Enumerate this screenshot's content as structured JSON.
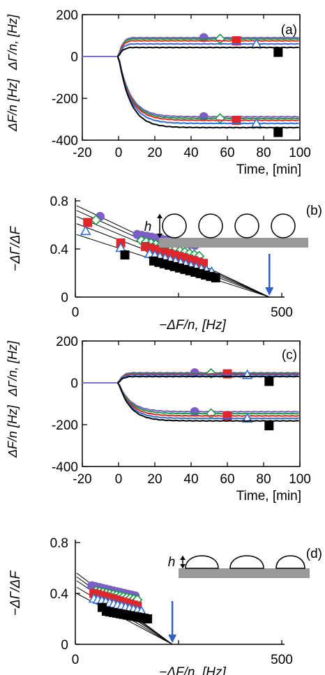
{
  "colors": {
    "purple": "#7b5ec8",
    "green": "#1a9a44",
    "red": "#e0262b",
    "blue": "#2f6fd0",
    "black": "#000000",
    "arrow": "#2f5fc4",
    "substrate": "#999999"
  },
  "chart_data": [
    {
      "panel": "(a)",
      "type": "line",
      "xlabel": "Time, [min]",
      "ylabel_top": "ΔΓ/n, [Hz]",
      "ylabel_bottom": "ΔF/n [Hz]",
      "xlim": [
        -20,
        100
      ],
      "ylim": [
        -400,
        200
      ],
      "xticks": [
        "-20",
        "0",
        "20",
        "40",
        "60",
        "80",
        "100"
      ],
      "yticks": [
        "200",
        "0",
        "-200",
        "-400"
      ],
      "series": [
        {
          "marker": "circle",
          "color": "purple",
          "dG_plateau": 90,
          "dF_plateau": -288,
          "marker_x": 47
        },
        {
          "marker": "diamond",
          "color": "green",
          "dG_plateau": 84,
          "dF_plateau": -296,
          "marker_x": 56
        },
        {
          "marker": "square",
          "color": "red",
          "dG_plateau": 75,
          "dF_plateau": -305,
          "marker_x": 65
        },
        {
          "marker": "triangle",
          "color": "blue",
          "dG_plateau": 60,
          "dF_plateau": -320,
          "marker_x": 76
        },
        {
          "marker": "square",
          "color": "black",
          "dG_plateau": 43,
          "dF_plateau": -340,
          "marker_x": 88
        }
      ]
    },
    {
      "panel": "(b)",
      "type": "scatter",
      "xlabel": "−ΔF/n, [Hz]",
      "ylabel": "−ΔΓ/ΔF",
      "xlim": [
        0,
        500
      ],
      "ylim": [
        0,
        0.8
      ],
      "xticks": [
        "0",
        "500"
      ],
      "yticks": [
        "0.8",
        "0.4",
        "0"
      ],
      "intercept_x": 470,
      "inset_label": "h",
      "inset_shape": "circle",
      "lines_y0": [
        0.76,
        0.72,
        0.67,
        0.61,
        0.52
      ],
      "series": [
        {
          "marker": "circle",
          "color": "purple",
          "x_range": [
            150,
            290
          ],
          "y_range": [
            0.52,
            0.43
          ],
          "isolated": [
            [
              60,
              0.67
            ]
          ]
        },
        {
          "marker": "diamond",
          "color": "green",
          "x_range": [
            160,
            300
          ],
          "y_range": [
            0.47,
            0.34
          ],
          "isolated": [
            [
              50,
              0.64
            ]
          ]
        },
        {
          "marker": "square",
          "color": "red",
          "x_range": [
            170,
            310
          ],
          "y_range": [
            0.42,
            0.28
          ],
          "isolated": [
            [
              30,
              0.62
            ],
            [
              110,
              0.45
            ]
          ]
        },
        {
          "marker": "triangle",
          "color": "blue",
          "x_range": [
            180,
            330
          ],
          "y_range": [
            0.36,
            0.21
          ],
          "isolated": [
            [
              25,
              0.55
            ],
            [
              110,
              0.41
            ]
          ]
        },
        {
          "marker": "square",
          "color": "black",
          "x_range": [
            190,
            340
          ],
          "y_range": [
            0.3,
            0.16
          ],
          "isolated": [
            [
              120,
              0.35
            ]
          ]
        }
      ]
    },
    {
      "panel": "(c)",
      "type": "line",
      "xlabel": "Time, [min]",
      "ylabel_top": "ΔΓ/n, [Hz]",
      "ylabel_bottom": "ΔF/n [Hz]",
      "xlim": [
        -20,
        100
      ],
      "ylim": [
        -400,
        200
      ],
      "xticks": [
        "-20",
        "0",
        "20",
        "40",
        "60",
        "80",
        "100"
      ],
      "yticks": [
        "200",
        "0",
        "-200",
        "-400"
      ],
      "series": [
        {
          "marker": "circle",
          "color": "purple",
          "dG_plateau": 48,
          "dF_plateau": -138,
          "marker_x": 42
        },
        {
          "marker": "diamond",
          "color": "green",
          "dG_plateau": 45,
          "dF_plateau": -147,
          "marker_x": 51
        },
        {
          "marker": "square",
          "color": "red",
          "dG_plateau": 43,
          "dF_plateau": -158,
          "marker_x": 60
        },
        {
          "marker": "triangle",
          "color": "blue",
          "dG_plateau": 38,
          "dF_plateau": -170,
          "marker_x": 71
        },
        {
          "marker": "square",
          "color": "black",
          "dG_plateau": 30,
          "dF_plateau": -182,
          "marker_x": 83
        }
      ]
    },
    {
      "panel": "(d)",
      "type": "scatter",
      "xlabel": "−ΔF/n, [Hz]",
      "ylabel": "−ΔΓ/ΔF",
      "xlim": [
        0,
        500
      ],
      "ylim": [
        0,
        0.8
      ],
      "xticks": [
        "0",
        "500"
      ],
      "yticks": [
        "0.8",
        "0.4",
        "0"
      ],
      "intercept_x": 235,
      "inset_label": "h",
      "inset_shape": "cap",
      "lines_y0": [
        0.56,
        0.53,
        0.5,
        0.45,
        0.4
      ],
      "series": [
        {
          "marker": "circle",
          "color": "purple",
          "x_range": [
            40,
            145
          ],
          "y_range": [
            0.46,
            0.38
          ],
          "isolated": []
        },
        {
          "marker": "diamond",
          "color": "green",
          "x_range": [
            50,
            150
          ],
          "y_range": [
            0.42,
            0.35
          ],
          "isolated": []
        },
        {
          "marker": "square",
          "color": "red",
          "x_range": [
            45,
            150
          ],
          "y_range": [
            0.4,
            0.3
          ],
          "isolated": []
        },
        {
          "marker": "triangle",
          "color": "blue",
          "x_range": [
            45,
            160
          ],
          "y_range": [
            0.36,
            0.26
          ],
          "isolated": []
        },
        {
          "marker": "square",
          "color": "black",
          "x_range": [
            75,
            175
          ],
          "y_range": [
            0.26,
            0.2
          ],
          "isolated": [
            [
              65,
              0.29
            ]
          ]
        }
      ]
    }
  ]
}
